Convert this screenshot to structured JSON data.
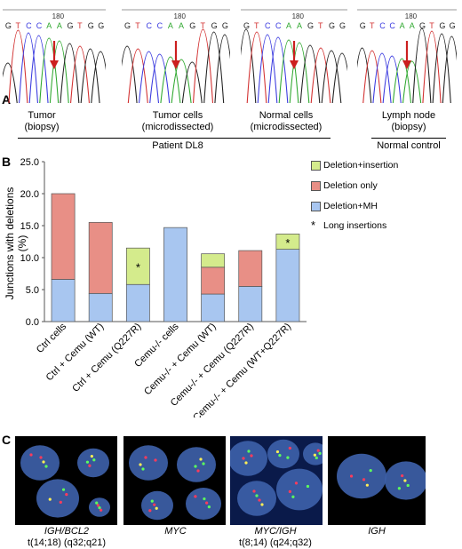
{
  "panel_a": {
    "letter": "A",
    "traces": [
      {
        "bases": "GTCCAAGTGG",
        "position_label": "180",
        "caption_line1": "Tumor",
        "caption_line2": "(biopsy)"
      },
      {
        "bases": "GTCCAAGTGG",
        "position_label": "180",
        "caption_line1": "Tumor cells",
        "caption_line2": "(microdissected)"
      },
      {
        "bases": "GTCCAAGTGG",
        "position_label": "180",
        "caption_line1": "Normal cells",
        "caption_line2": "(microdissected)"
      },
      {
        "bases": "GTCCAAGTGG",
        "position_label": "180",
        "caption_line1": "Lymph node",
        "caption_line2": "(biopsy)"
      }
    ],
    "group_patient": "Patient DL8",
    "group_control": "Normal control",
    "arrow_color": "#cc1f1f",
    "base_colors": {
      "A": "#2fa82f",
      "C": "#3a3adf",
      "G": "#222222",
      "T": "#d23030"
    }
  },
  "panel_b": {
    "letter": "B",
    "chart_data": {
      "type": "bar",
      "stacked": true,
      "categories": [
        "Ctrl cells",
        "Ctrl + Cemu (WT)",
        "Ctrl + Cemu (Q227R)",
        "Cemu-/- cells",
        "Cemu-/- + Cemu (WT)",
        "Cemu-/- + Cemu (Q227R)",
        "Cemu-/- + Cemu (WT+Q227R)"
      ],
      "series": [
        {
          "name": "Deletion+MH",
          "color": "#a8c6f0",
          "values": [
            6.6,
            4.4,
            5.8,
            14.7,
            4.3,
            5.5,
            11.3
          ]
        },
        {
          "name": "Deletion only",
          "color": "#e88f86",
          "values": [
            13.4,
            11.1,
            0,
            0,
            4.2,
            5.6,
            0
          ]
        },
        {
          "name": "Deletion+insertion",
          "color": "#d4eb8c",
          "values": [
            0,
            0,
            5.7,
            0,
            2.1,
            0,
            2.4
          ]
        }
      ],
      "long_insertion_marks": [
        false,
        false,
        true,
        false,
        false,
        false,
        true
      ],
      "long_insertion_label": "Long insertions",
      "star_symbol": "*",
      "ylabel": "Junctions with deletions (%)",
      "ylim": [
        0,
        25
      ],
      "yticks": [
        "0.0",
        "5.0",
        "10.0",
        "15.0",
        "20.0",
        "25.0"
      ],
      "legend_position": "right",
      "legend_order": [
        "Deletion+insertion",
        "Deletion only",
        "Deletion+MH"
      ]
    }
  },
  "panel_c": {
    "letter": "C",
    "images": [
      {
        "caption_line1": "IGH/BCL2",
        "caption_line2": "t(14;18) (q32;q21)",
        "italic_line1": true
      },
      {
        "caption_line1": "MYC",
        "caption_line2": "",
        "italic_line1": true
      },
      {
        "caption_line1": "MYC/IGH",
        "caption_line2": "t(8;14) (q24;q32)",
        "italic_line1": true
      },
      {
        "caption_line1": "IGH",
        "caption_line2": "",
        "italic_line1": true
      }
    ]
  }
}
